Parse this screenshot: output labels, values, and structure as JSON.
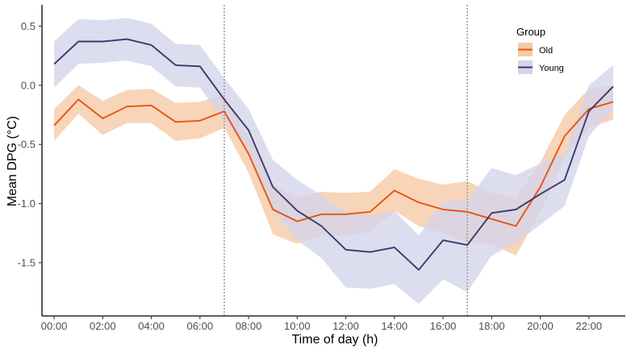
{
  "chart_data": {
    "type": "line",
    "title": "",
    "xlabel": "Time of day (h)",
    "ylabel": "Mean DPG (°C)",
    "xlim": [
      -0.5,
      23.5
    ],
    "ylim": [
      -1.95,
      0.68
    ],
    "x": [
      0,
      1,
      2,
      3,
      4,
      5,
      6,
      7,
      8,
      9,
      10,
      11,
      12,
      13,
      14,
      15,
      16,
      17,
      18,
      19,
      20,
      21,
      22,
      23
    ],
    "x_ticks": [
      0,
      2,
      4,
      6,
      8,
      10,
      12,
      14,
      16,
      18,
      20,
      22
    ],
    "x_tick_labels": [
      "00:00",
      "02:00",
      "04:00",
      "06:00",
      "08:00",
      "10:00",
      "12:00",
      "14:00",
      "16:00",
      "18:00",
      "20:00",
      "22:00"
    ],
    "y_ticks": [
      0.5,
      0.0,
      -0.5,
      -1.0,
      -1.5
    ],
    "y_tick_labels": [
      "0.5",
      "0.0",
      "-0.5",
      "-1.0",
      "-1.5"
    ],
    "vlines": [
      7,
      17
    ],
    "legend": {
      "title": "Group",
      "position": "top-right"
    },
    "series": [
      {
        "name": "Old",
        "line_color": "#e6550d",
        "band_color": "#f6c9a4",
        "values": [
          -0.34,
          -0.12,
          -0.28,
          -0.18,
          -0.17,
          -0.31,
          -0.3,
          -0.22,
          -0.58,
          -1.05,
          -1.15,
          -1.09,
          -1.09,
          -1.07,
          -0.89,
          -0.99,
          -1.05,
          -1.07,
          -1.13,
          -1.19,
          -0.86,
          -0.43,
          -0.2,
          -0.14
        ],
        "lower": [
          -0.47,
          -0.24,
          -0.42,
          -0.32,
          -0.32,
          -0.47,
          -0.45,
          -0.36,
          -0.74,
          -1.26,
          -1.34,
          -1.27,
          -1.27,
          -1.24,
          -1.06,
          -1.19,
          -1.25,
          -1.33,
          -1.34,
          -1.44,
          -1.07,
          -0.62,
          -0.36,
          -0.29
        ],
        "upper": [
          -0.2,
          0.0,
          -0.13,
          -0.04,
          -0.03,
          -0.15,
          -0.14,
          -0.08,
          -0.43,
          -0.84,
          -0.95,
          -0.9,
          -0.91,
          -0.9,
          -0.71,
          -0.79,
          -0.84,
          -0.81,
          -0.91,
          -0.95,
          -0.65,
          -0.25,
          -0.03,
          0.0
        ]
      },
      {
        "name": "Young",
        "line_color": "#3b3a6a",
        "band_color": "#d4d4ec",
        "values": [
          0.18,
          0.37,
          0.37,
          0.39,
          0.34,
          0.17,
          0.16,
          -0.12,
          -0.38,
          -0.86,
          -1.06,
          -1.19,
          -1.39,
          -1.41,
          -1.37,
          -1.56,
          -1.31,
          -1.35,
          -1.08,
          -1.05,
          -0.92,
          -0.8,
          -0.22,
          -0.01
        ],
        "lower": [
          -0.02,
          0.18,
          0.19,
          0.21,
          0.16,
          -0.01,
          -0.02,
          -0.3,
          -0.56,
          -1.06,
          -1.31,
          -1.46,
          -1.71,
          -1.72,
          -1.68,
          -1.85,
          -1.64,
          -1.75,
          -1.44,
          -1.33,
          -1.18,
          -1.02,
          -0.43,
          -0.2
        ],
        "upper": [
          0.37,
          0.56,
          0.55,
          0.57,
          0.52,
          0.35,
          0.34,
          0.06,
          -0.2,
          -0.63,
          -0.8,
          -0.93,
          -1.07,
          -1.1,
          -1.06,
          -1.27,
          -0.98,
          -0.97,
          -0.7,
          -0.76,
          -0.66,
          -0.58,
          0.0,
          0.17
        ]
      }
    ]
  }
}
